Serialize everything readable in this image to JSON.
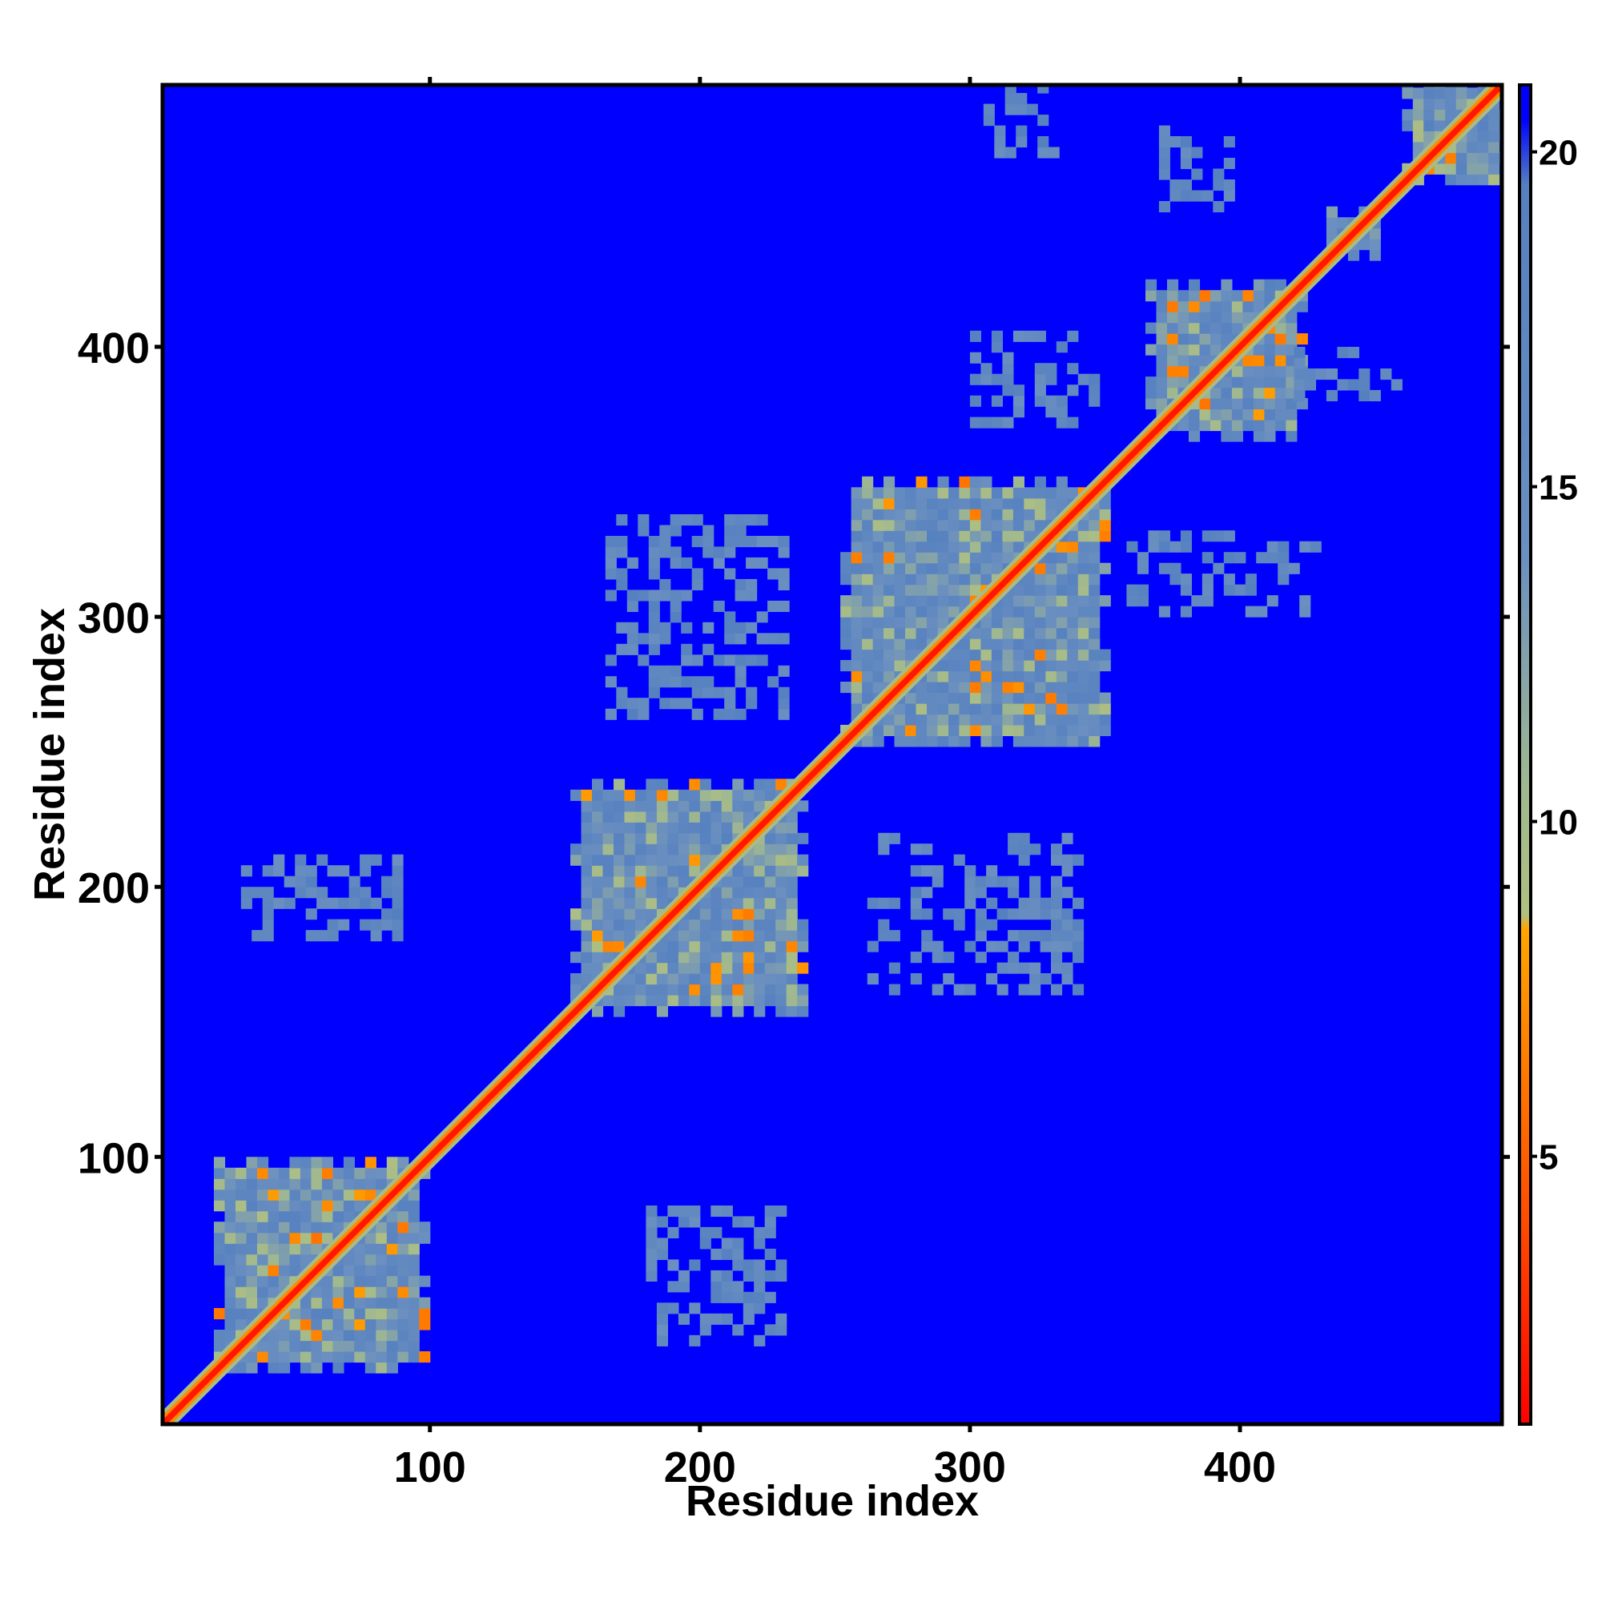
{
  "chart_data": {
    "type": "heatmap",
    "title": "",
    "xlabel": "Residue index",
    "ylabel": "Residue index",
    "xlim": [
      1,
      497
    ],
    "ylim": [
      1,
      497
    ],
    "x_ticks": [
      "100",
      "200",
      "300",
      "400"
    ],
    "y_ticks": [
      "100",
      "200",
      "300",
      "400"
    ],
    "colorbar": {
      "range": [
        1,
        21
      ],
      "ticks": [
        "5",
        "10",
        "15",
        "20"
      ],
      "stops": [
        {
          "value": 1,
          "color": "#ff0000"
        },
        {
          "value": 4,
          "color": "#ff4a00"
        },
        {
          "value": 8.4,
          "color": "#ffa500"
        },
        {
          "value": 8.6,
          "color": "#b0c080"
        },
        {
          "value": 10.5,
          "color": "#a0b890"
        },
        {
          "value": 14,
          "color": "#6a8fc0"
        },
        {
          "value": 19.5,
          "color": "#5580c0"
        },
        {
          "value": 20.5,
          "color": "#0000ff"
        },
        {
          "value": 21,
          "color": "#0000ff"
        }
      ]
    },
    "background_value": 21,
    "background_color": "#0000ff",
    "domains": [
      {
        "start": 20,
        "end": 97
      },
      {
        "start": 152,
        "end": 238
      },
      {
        "start": 252,
        "end": 350
      },
      {
        "start": 365,
        "end": 423
      },
      {
        "start": 432,
        "end": 450
      },
      {
        "start": 460,
        "end": 497
      }
    ],
    "off_diagonal_contacts": [
      {
        "x": [
          165,
          230
        ],
        "y": [
          262,
          335
        ]
      },
      {
        "x": [
          262,
          340
        ],
        "y": [
          160,
          220
        ]
      },
      {
        "x": [
          300,
          345
        ],
        "y": [
          370,
          405
        ]
      },
      {
        "x": [
          358,
          430
        ],
        "y": [
          300,
          330
        ]
      },
      {
        "x": [
          305,
          330
        ],
        "y": [
          470,
          495
        ]
      },
      {
        "x": [
          420,
          460
        ],
        "y": [
          380,
          400
        ]
      },
      {
        "x": [
          180,
          230
        ],
        "y": [
          30,
          80
        ]
      },
      {
        "x": [
          30,
          90
        ],
        "y": [
          180,
          210
        ]
      },
      {
        "x": [
          370,
          395
        ],
        "y": [
          450,
          480
        ]
      }
    ],
    "grid": false,
    "legend": "colorbar-right"
  }
}
